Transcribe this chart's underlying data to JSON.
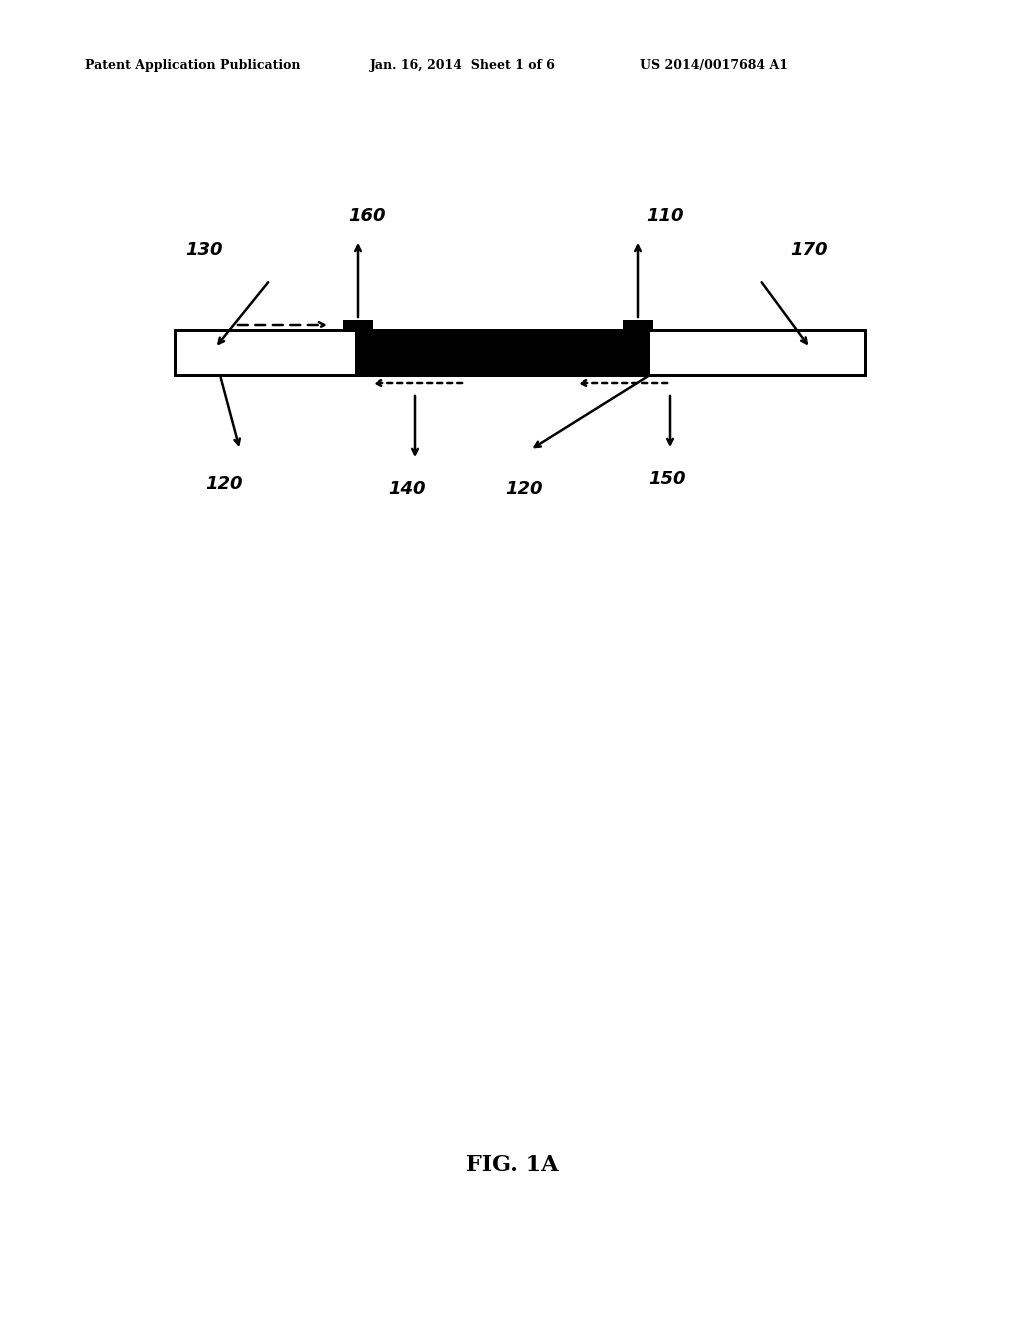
{
  "header_left": "Patent Application Publication",
  "header_mid": "Jan. 16, 2014  Sheet 1 of 6",
  "header_right": "US 2014/0017684 A1",
  "fig_label": "FIG. 1A",
  "bg_color": "#ffffff",
  "bar_outline": "#000000",
  "black_fill": "#000000",
  "white_fill": "#ffffff",
  "label_130": "130",
  "label_110": "110",
  "label_160": "160",
  "label_170": "170",
  "label_120_bl": "120",
  "label_120_bm": "120",
  "label_140": "140",
  "label_150": "150"
}
